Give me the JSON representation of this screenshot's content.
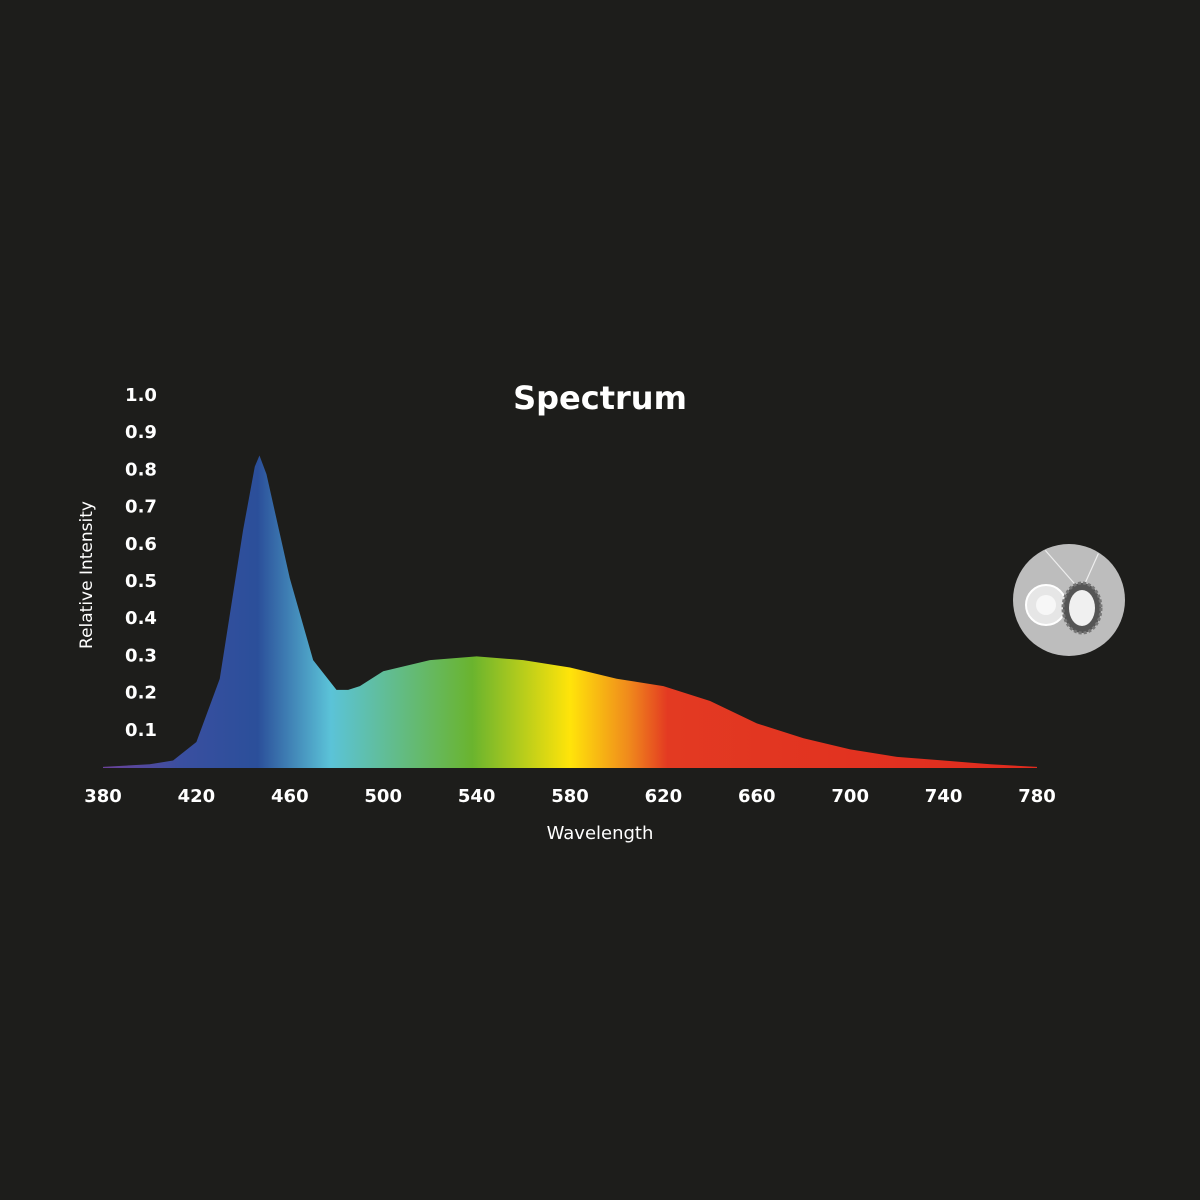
{
  "chart_data": {
    "type": "area",
    "title": "Spectrum",
    "x_label": "Wavelength",
    "y_label": "Relative Intensity",
    "x": [
      380,
      400,
      410,
      420,
      430,
      440,
      445,
      447,
      450,
      460,
      470,
      480,
      485,
      490,
      500,
      520,
      540,
      560,
      580,
      600,
      620,
      640,
      660,
      680,
      700,
      720,
      740,
      760,
      780
    ],
    "y": [
      0.003,
      0.01,
      0.02,
      0.07,
      0.24,
      0.64,
      0.81,
      0.84,
      0.79,
      0.51,
      0.29,
      0.21,
      0.21,
      0.22,
      0.26,
      0.29,
      0.3,
      0.29,
      0.27,
      0.24,
      0.22,
      0.18,
      0.12,
      0.08,
      0.05,
      0.03,
      0.02,
      0.01,
      0.003
    ],
    "xlim": [
      371,
      789
    ],
    "ylim": [
      0,
      1
    ],
    "xticks": [
      380,
      420,
      460,
      500,
      540,
      580,
      620,
      660,
      700,
      740,
      780
    ],
    "yticks": [
      0.1,
      0.2,
      0.3,
      0.4,
      0.5,
      0.6,
      0.7,
      0.8,
      0.9,
      {
        "value": 1,
        "label": "1.0"
      }
    ]
  }
}
